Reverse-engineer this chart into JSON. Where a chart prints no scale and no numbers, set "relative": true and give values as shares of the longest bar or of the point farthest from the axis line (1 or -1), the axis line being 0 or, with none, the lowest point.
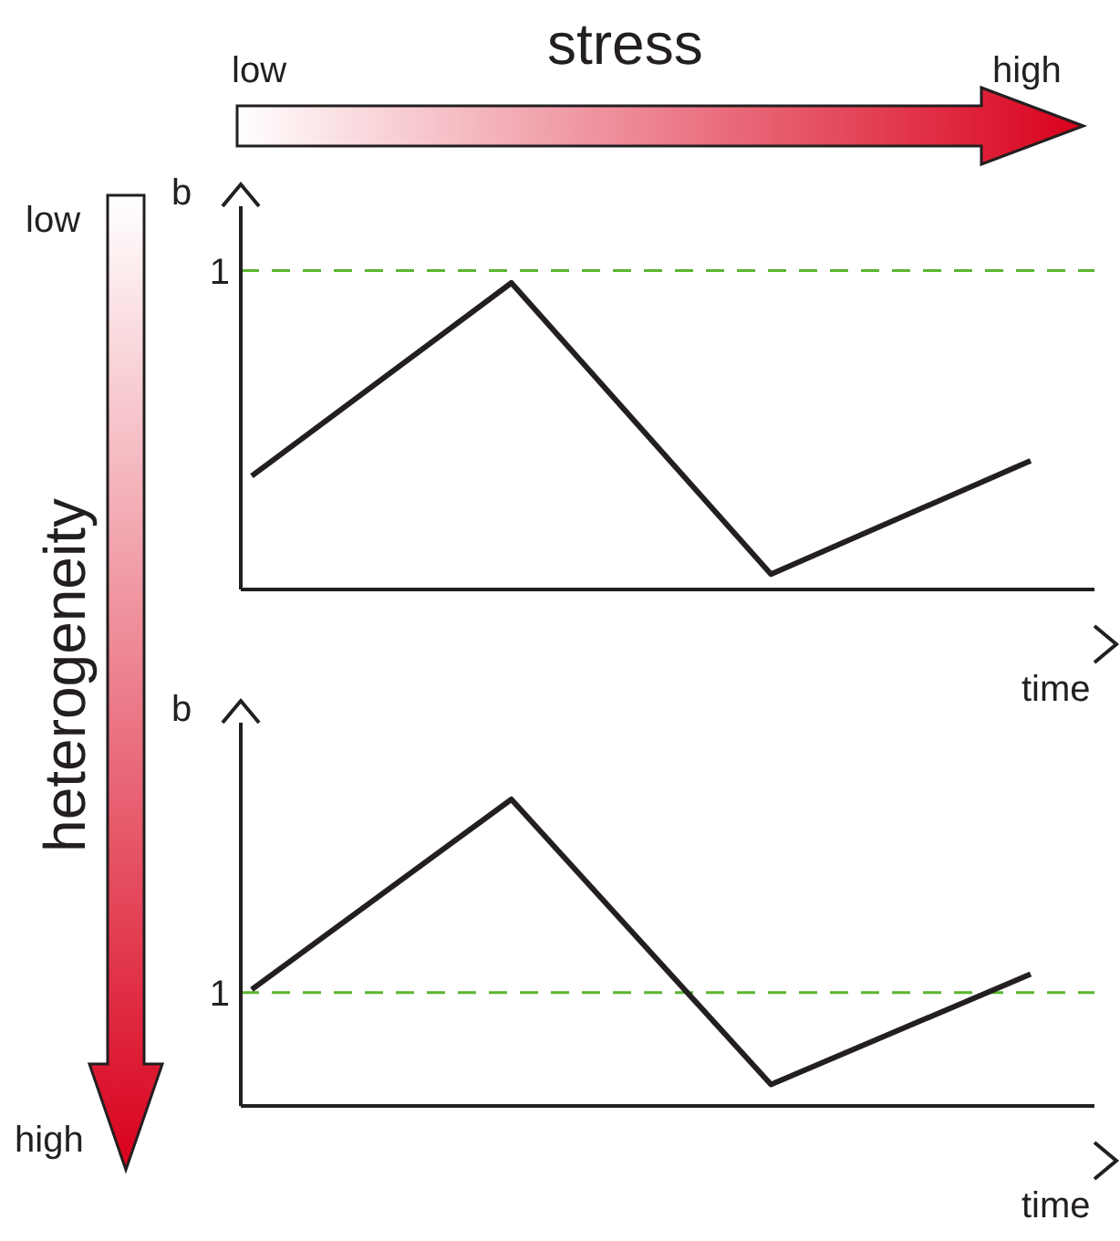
{
  "chart_data": [
    {
      "type": "line",
      "relative": true,
      "categories": [
        null,
        null,
        null,
        null
      ],
      "xlabel": "time",
      "ylabel": "b",
      "series": [
        {
          "color": "#231f20",
          "values": [
            0.37,
            1,
            0.05,
            0.42
          ]
        }
      ],
      "ref_lines": [
        {
          "axis": "y",
          "value": 1.04,
          "color": "#5bb530",
          "line_style": "dashed"
        }
      ],
      "annotations": [
        "1",
        "stress",
        "low",
        "high",
        "heterogeneity",
        "low",
        "high"
      ]
    },
    {
      "type": "line",
      "relative": true,
      "categories": [
        null,
        null,
        null,
        null
      ],
      "xlabel": "time",
      "ylabel": "b",
      "series": [
        {
          "color": "#231f20",
          "values": [
            0.38,
            1,
            0.07,
            0.43
          ]
        }
      ],
      "ref_lines": [
        {
          "axis": "y",
          "value": 0.37,
          "color": "#5bb530",
          "line_style": "dashed"
        }
      ],
      "annotations": [
        "1"
      ]
    }
  ]
}
